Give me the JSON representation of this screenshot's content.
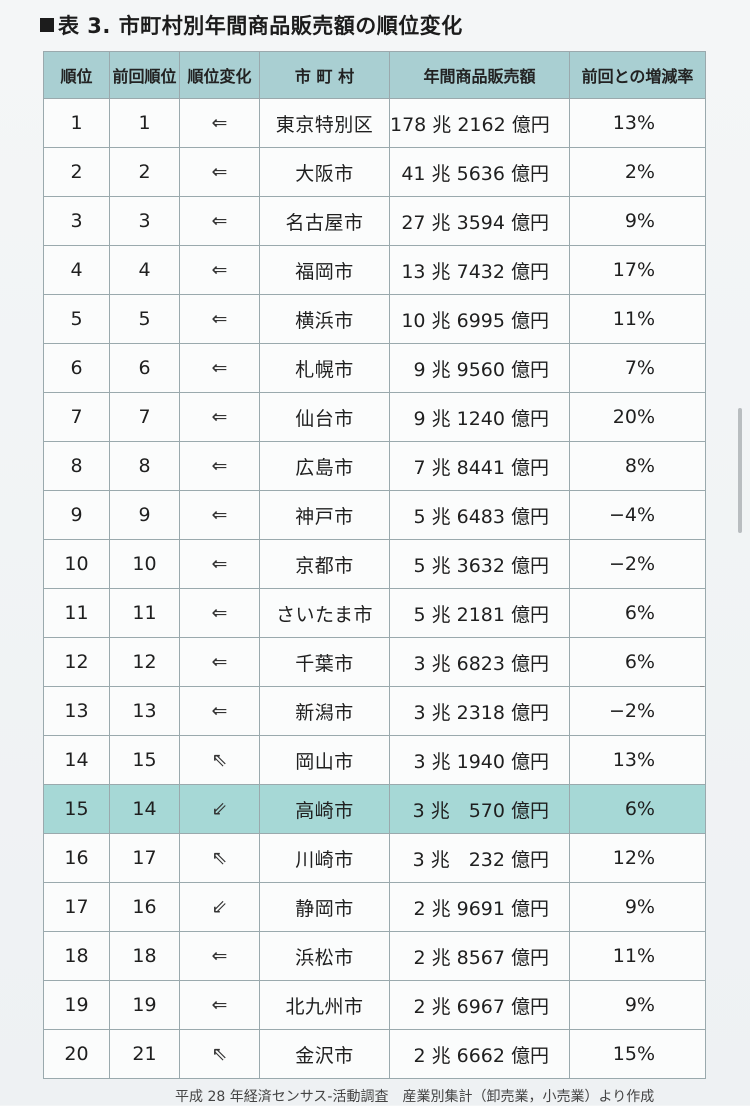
{
  "title": "表 3. 市町村別年間商品販売額の順位変化",
  "headers": [
    "順位",
    "前回順位",
    "順位変化",
    "市 町 村",
    "年間商品販売額",
    "前回との増減率"
  ],
  "rows": [
    {
      "rank": "1",
      "prev": "1",
      "change": "⇐",
      "city": "東京特別区",
      "amount": "178 兆 2162 億円",
      "rate": "13%"
    },
    {
      "rank": "2",
      "prev": "2",
      "change": "⇐",
      "city": "大阪市",
      "amount": "41 兆 5636 億円",
      "rate": "2%"
    },
    {
      "rank": "3",
      "prev": "3",
      "change": "⇐",
      "city": "名古屋市",
      "amount": "27 兆 3594 億円",
      "rate": "9%"
    },
    {
      "rank": "4",
      "prev": "4",
      "change": "⇐",
      "city": "福岡市",
      "amount": "13 兆 7432 億円",
      "rate": "17%"
    },
    {
      "rank": "5",
      "prev": "5",
      "change": "⇐",
      "city": "横浜市",
      "amount": "10 兆 6995 億円",
      "rate": "11%"
    },
    {
      "rank": "6",
      "prev": "6",
      "change": "⇐",
      "city": "札幌市",
      "amount": "9 兆 9560 億円",
      "rate": "7%"
    },
    {
      "rank": "7",
      "prev": "7",
      "change": "⇐",
      "city": "仙台市",
      "amount": "9 兆 1240 億円",
      "rate": "20%"
    },
    {
      "rank": "8",
      "prev": "8",
      "change": "⇐",
      "city": "広島市",
      "amount": "7 兆 8441 億円",
      "rate": "8%"
    },
    {
      "rank": "9",
      "prev": "9",
      "change": "⇐",
      "city": "神戸市",
      "amount": "5 兆 6483 億円",
      "rate": "−4%"
    },
    {
      "rank": "10",
      "prev": "10",
      "change": "⇐",
      "city": "京都市",
      "amount": "5 兆 3632 億円",
      "rate": "−2%"
    },
    {
      "rank": "11",
      "prev": "11",
      "change": "⇐",
      "city": "さいたま市",
      "amount": "5 兆 2181 億円",
      "rate": "6%"
    },
    {
      "rank": "12",
      "prev": "12",
      "change": "⇐",
      "city": "千葉市",
      "amount": "3 兆 6823 億円",
      "rate": "6%"
    },
    {
      "rank": "13",
      "prev": "13",
      "change": "⇐",
      "city": "新潟市",
      "amount": "3 兆 2318 億円",
      "rate": "−2%"
    },
    {
      "rank": "14",
      "prev": "15",
      "change": "⇖",
      "city": "岡山市",
      "amount": "3 兆 1940 億円",
      "rate": "13%"
    },
    {
      "rank": "15",
      "prev": "14",
      "change": "⇙",
      "city": "高崎市",
      "amount": "3 兆　570 億円",
      "rate": "6%",
      "highlight": true
    },
    {
      "rank": "16",
      "prev": "17",
      "change": "⇖",
      "city": "川崎市",
      "amount": "3 兆　232 億円",
      "rate": "12%"
    },
    {
      "rank": "17",
      "prev": "16",
      "change": "⇙",
      "city": "静岡市",
      "amount": "2 兆 9691 億円",
      "rate": "9%"
    },
    {
      "rank": "18",
      "prev": "18",
      "change": "⇐",
      "city": "浜松市",
      "amount": "2 兆 8567 億円",
      "rate": "11%"
    },
    {
      "rank": "19",
      "prev": "19",
      "change": "⇐",
      "city": "北九州市",
      "amount": "2 兆 6967 億円",
      "rate": "9%"
    },
    {
      "rank": "20",
      "prev": "21",
      "change": "⇖",
      "city": "金沢市",
      "amount": "2 兆 6662 億円",
      "rate": "15%"
    }
  ],
  "footnote": "平成 28 年経済センサス‐活動調査　産業別集計（卸売業，小売業）より作成",
  "colors": {
    "header_bg": "#a9cfd2",
    "highlight_bg": "#a6d8d6",
    "border": "#9aa9ad"
  }
}
